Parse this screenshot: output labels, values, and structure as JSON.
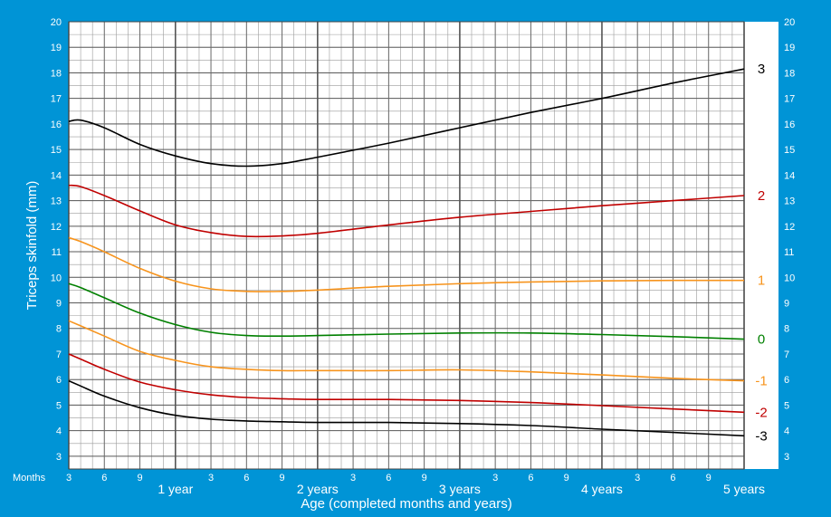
{
  "chart_data": {
    "type": "line",
    "ylabel": "Triceps skinfold (mm)",
    "xlabel": "Age (completed months and years)",
    "x_unit_label": "Months",
    "xlim": [
      3,
      60
    ],
    "ylim": [
      2.5,
      20
    ],
    "y_ticks": [
      3,
      4,
      5,
      6,
      7,
      8,
      9,
      10,
      11,
      12,
      13,
      14,
      15,
      16,
      17,
      18,
      19,
      20
    ],
    "x_month_ticks": [
      {
        "month": 3,
        "label": "3"
      },
      {
        "month": 6,
        "label": "6"
      },
      {
        "month": 9,
        "label": "9"
      },
      {
        "month": 15,
        "label": "3"
      },
      {
        "month": 18,
        "label": "6"
      },
      {
        "month": 21,
        "label": "9"
      },
      {
        "month": 27,
        "label": "3"
      },
      {
        "month": 30,
        "label": "6"
      },
      {
        "month": 33,
        "label": "9"
      },
      {
        "month": 39,
        "label": "3"
      },
      {
        "month": 42,
        "label": "6"
      },
      {
        "month": 45,
        "label": "9"
      },
      {
        "month": 51,
        "label": "3"
      },
      {
        "month": 54,
        "label": "6"
      },
      {
        "month": 57,
        "label": "9"
      }
    ],
    "x_year_ticks": [
      {
        "month": 12,
        "label": "1 year"
      },
      {
        "month": 24,
        "label": "2 years"
      },
      {
        "month": 36,
        "label": "3 years"
      },
      {
        "month": 48,
        "label": "4 years"
      },
      {
        "month": 60,
        "label": "5 years"
      }
    ],
    "grid": true,
    "categories": [
      3,
      4,
      6,
      9,
      12,
      15,
      18,
      21,
      24,
      30,
      36,
      42,
      48,
      54,
      60
    ],
    "series": [
      {
        "name": "3",
        "color": "#000000",
        "values": [
          16.1,
          16.15,
          15.85,
          15.2,
          14.75,
          14.45,
          14.35,
          14.45,
          14.7,
          15.25,
          15.85,
          16.45,
          17.0,
          17.6,
          18.15
        ]
      },
      {
        "name": "2",
        "color": "#c00000",
        "values": [
          13.6,
          13.55,
          13.2,
          12.6,
          12.05,
          11.75,
          11.6,
          11.62,
          11.72,
          12.05,
          12.35,
          12.58,
          12.8,
          13.0,
          13.2
        ]
      },
      {
        "name": "1",
        "color": "#f7941d",
        "values": [
          11.55,
          11.4,
          11.0,
          10.35,
          9.85,
          9.55,
          9.45,
          9.45,
          9.5,
          9.65,
          9.75,
          9.82,
          9.86,
          9.88,
          9.88
        ]
      },
      {
        "name": "0",
        "color": "#008000",
        "values": [
          9.75,
          9.6,
          9.2,
          8.6,
          8.15,
          7.85,
          7.72,
          7.7,
          7.72,
          7.78,
          7.82,
          7.82,
          7.76,
          7.68,
          7.58
        ]
      },
      {
        "name": "-1",
        "color": "#f7941d",
        "values": [
          8.3,
          8.1,
          7.7,
          7.1,
          6.75,
          6.5,
          6.4,
          6.35,
          6.35,
          6.35,
          6.38,
          6.3,
          6.18,
          6.05,
          5.95
        ]
      },
      {
        "name": "-2",
        "color": "#c00000",
        "values": [
          7.0,
          6.8,
          6.4,
          5.9,
          5.6,
          5.4,
          5.3,
          5.25,
          5.22,
          5.22,
          5.18,
          5.1,
          4.98,
          4.85,
          4.72
        ]
      },
      {
        "name": "-3",
        "color": "#000000",
        "values": [
          5.95,
          5.75,
          5.35,
          4.9,
          4.6,
          4.45,
          4.38,
          4.35,
          4.32,
          4.32,
          4.28,
          4.2,
          4.06,
          3.93,
          3.8
        ]
      }
    ]
  }
}
